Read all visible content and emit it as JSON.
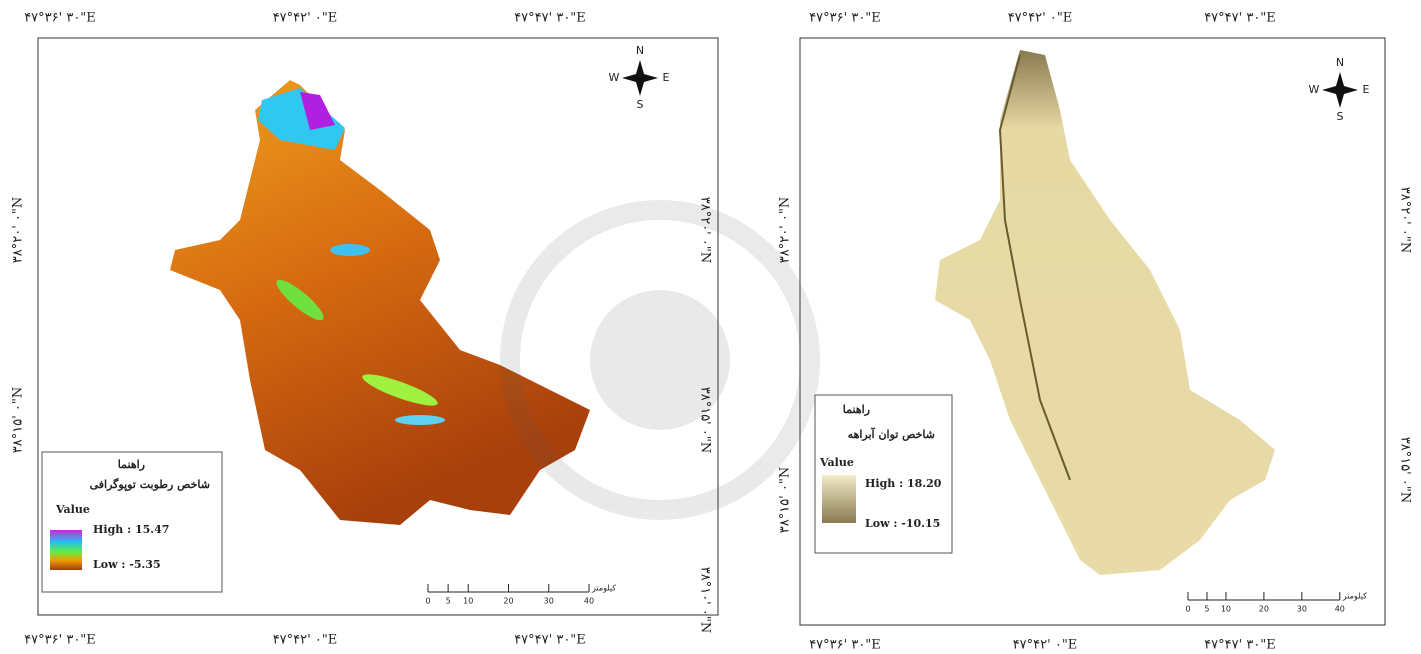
{
  "maps": [
    {
      "top_labels": [
        "۴۷°۳۶' ۳۰\"E",
        "۴۷°۴۲' ۰\"E",
        "۴۷°۴۷' ۳۰\"E"
      ],
      "bottom_labels": [
        "۴۷°۳۶' ۳۰\"E",
        "۴۷°۴۲' ۰\"E",
        "۴۷°۴۷' ۳۰\"E"
      ],
      "left_labels": [
        "۳۸°۲۰' ۰\"N",
        "۳۸°۱۵' ۰\"N"
      ],
      "right_labels": [
        "۳۸°۲۰' ۰\"N",
        "۳۸°۱۵' ۰\"N",
        "۳۸°۱۰' ۰\"N"
      ],
      "compass": {
        "n": "N",
        "e": "E",
        "s": "S",
        "w": "W"
      },
      "legend": {
        "title": "راهنما",
        "subtitle": "شاخص رطوبت توپوگرافی",
        "value": "Value",
        "high": "High : 15.47",
        "low": "Low : -5.35"
      },
      "scale": {
        "ticks": [
          0,
          5,
          10,
          20,
          30,
          40
        ],
        "unit": "کیلومتر"
      }
    },
    {
      "top_labels": [
        "۴۷°۳۶' ۳۰\"E",
        "۴۷°۴۲' ۰\"E",
        "۴۷°۴۷' ۳۰\"E"
      ],
      "bottom_labels": [
        "۴۷°۳۶' ۳۰\"E",
        "۴۷°۴۲' ۰\"E",
        "۴۷°۴۷' ۳۰\"E"
      ],
      "left_labels": [
        "۳۸°۲۰' ۰\"N",
        "۳۸°۱۵' ۰\"N"
      ],
      "right_labels": [
        "۳۸°۲۰' ۰\"N",
        "۳۸°۱۵' ۰\"N"
      ],
      "compass": {
        "n": "N",
        "e": "E",
        "s": "S",
        "w": "W"
      },
      "legend": {
        "title": "راهنما",
        "subtitle": "شاخص توان آبراهه",
        "value": "Value",
        "high": "High : 18.20",
        "low": "Low : -10.15"
      },
      "scale": {
        "ticks": [
          0,
          5,
          10,
          20,
          30,
          40
        ],
        "unit": "کیلومتر"
      }
    }
  ]
}
